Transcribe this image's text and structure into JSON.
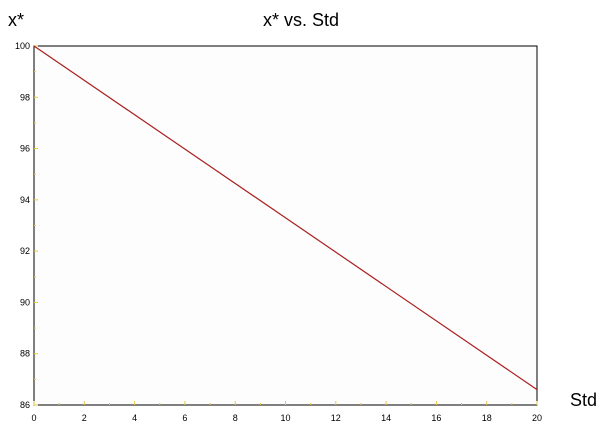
{
  "chart_data": {
    "type": "line",
    "title": "x* vs. Std",
    "xlabel": "Std",
    "ylabel": "x*",
    "xlim": [
      0,
      20
    ],
    "ylim": [
      86,
      100
    ],
    "x_ticks": [
      0,
      2,
      4,
      6,
      8,
      10,
      12,
      14,
      16,
      18,
      20
    ],
    "y_ticks": [
      86,
      88,
      90,
      92,
      94,
      96,
      98,
      100
    ],
    "grid": false,
    "series": [
      {
        "color": "#aa1f1f",
        "x": [
          0,
          20
        ],
        "y": [
          100,
          86.6
        ]
      }
    ]
  }
}
